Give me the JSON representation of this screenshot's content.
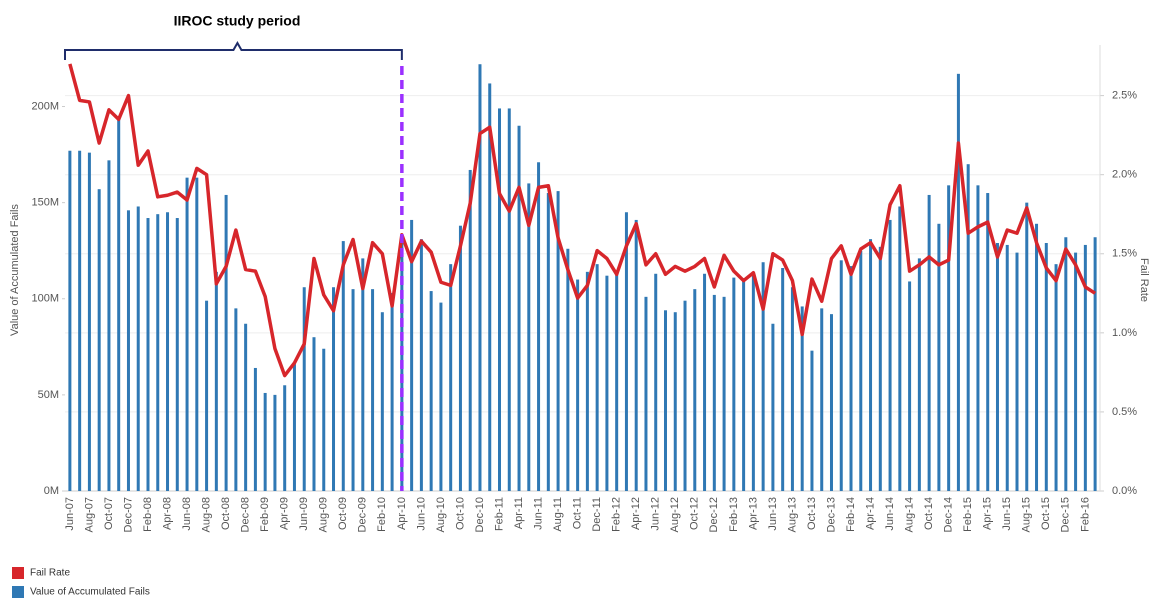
{
  "chart_data": {
    "type": "bar_line",
    "annotation": {
      "text": "IIROC study period",
      "end": "Apr-10"
    },
    "ylabel": "Value of Accumulated Fails",
    "y2label": "Fail Rate",
    "categories": [
      "Jun-07",
      null,
      "Aug-07",
      null,
      "Oct-07",
      null,
      "Dec-07",
      null,
      "Feb-08",
      null,
      "Apr-08",
      null,
      "Jun-08",
      null,
      "Aug-08",
      null,
      "Oct-08",
      null,
      "Dec-08",
      null,
      "Feb-09",
      null,
      "Apr-09",
      null,
      "Jun-09",
      null,
      "Aug-09",
      null,
      "Oct-09",
      null,
      "Dec-09",
      null,
      "Feb-10",
      null,
      "Apr-10",
      null,
      "Jun-10",
      null,
      "Aug-10",
      null,
      "Oct-10",
      null,
      "Dec-10",
      null,
      "Feb-11",
      null,
      "Apr-11",
      null,
      "Jun-11",
      null,
      "Aug-11",
      null,
      "Oct-11",
      null,
      "Dec-11",
      null,
      "Feb-12",
      null,
      "Apr-12",
      null,
      "Jun-12",
      null,
      "Aug-12",
      null,
      "Oct-12",
      null,
      "Dec-12",
      null,
      "Feb-13",
      null,
      "Apr-13",
      null,
      "Jun-13",
      null,
      "Aug-13",
      null,
      "Oct-13",
      null,
      "Dec-13",
      null,
      "Feb-14",
      null,
      "Apr-14",
      null,
      "Jun-14",
      null,
      "Aug-14",
      null,
      "Oct-14",
      null,
      "Dec-14",
      null,
      "Feb-15",
      null,
      "Apr-15",
      null,
      "Jun-15",
      null,
      "Aug-15",
      null,
      "Oct-15",
      null,
      "Dec-15",
      null,
      "Feb-16",
      null
    ],
    "series": [
      {
        "name": "Fail Rate",
        "color": "#d7262b",
        "axis": "y2",
        "kind": "line",
        "values": [
          2.7,
          2.47,
          2.46,
          2.2,
          2.41,
          2.35,
          2.5,
          2.06,
          2.15,
          1.86,
          1.87,
          1.89,
          1.84,
          2.04,
          2.0,
          1.31,
          1.42,
          1.65,
          1.4,
          1.39,
          1.23,
          0.9,
          0.73,
          0.81,
          0.93,
          1.47,
          1.24,
          1.14,
          1.43,
          1.59,
          1.28,
          1.57,
          1.5,
          1.17,
          1.62,
          1.45,
          1.58,
          1.51,
          1.32,
          1.3,
          1.55,
          1.82,
          2.26,
          2.3,
          1.88,
          1.77,
          1.92,
          1.68,
          1.92,
          1.93,
          1.6,
          1.4,
          1.22,
          1.3,
          1.52,
          1.47,
          1.37,
          1.55,
          1.69,
          1.43,
          1.5,
          1.37,
          1.42,
          1.39,
          1.42,
          1.47,
          1.29,
          1.49,
          1.39,
          1.33,
          1.38,
          1.15,
          1.5,
          1.46,
          1.33,
          0.99,
          1.34,
          1.2,
          1.47,
          1.55,
          1.37,
          1.53,
          1.57,
          1.47,
          1.81,
          1.93,
          1.39,
          1.43,
          1.48,
          1.43,
          1.46,
          2.2,
          1.63,
          1.67,
          1.7,
          1.48,
          1.65,
          1.63,
          1.79,
          1.57,
          1.41,
          1.33,
          1.53,
          1.43,
          1.29,
          1.25
        ]
      },
      {
        "name": "Value of Accumulated Fails",
        "color": "#2f78b4",
        "kind": "bar",
        "values": [
          177000000,
          177000000,
          176000000,
          157000000,
          172000000,
          194000000,
          146000000,
          148000000,
          142000000,
          144000000,
          145000000,
          142000000,
          163000000,
          163000000,
          99000000,
          114000000,
          154000000,
          95000000,
          87000000,
          64000000,
          51000000,
          50000000,
          55000000,
          66000000,
          106000000,
          80000000,
          74000000,
          106000000,
          130000000,
          105000000,
          121000000,
          105000000,
          93000000,
          103000000,
          130000000,
          141000000,
          131000000,
          104000000,
          98000000,
          118000000,
          138000000,
          167000000,
          222000000,
          212000000,
          199000000,
          199000000,
          190000000,
          160000000,
          171000000,
          155000000,
          156000000,
          126000000,
          110000000,
          114000000,
          118000000,
          112000000,
          114000000,
          145000000,
          141000000,
          101000000,
          113000000,
          94000000,
          93000000,
          99000000,
          105000000,
          113000000,
          102000000,
          101000000,
          111000000,
          109000000,
          112000000,
          119000000,
          87000000,
          116000000,
          106000000,
          96000000,
          73000000,
          95000000,
          92000000,
          120000000,
          117000000,
          125000000,
          131000000,
          127000000,
          141000000,
          148000000,
          109000000,
          121000000,
          154000000,
          139000000,
          159000000,
          217000000,
          170000000,
          159000000,
          155000000,
          129000000,
          128000000,
          124000000,
          150000000,
          139000000,
          129000000,
          118000000,
          132000000,
          124000000,
          128000000,
          132000000
        ]
      }
    ],
    "ylim": [
      0,
      232000000
    ],
    "yticks": [
      {
        "value": 0,
        "label": "0M"
      },
      {
        "value": 50000000,
        "label": "50M"
      },
      {
        "value": 100000000,
        "label": "100M"
      },
      {
        "value": 150000000,
        "label": "150M"
      },
      {
        "value": 200000000,
        "label": "200M"
      }
    ],
    "y2lim": [
      0,
      2.82
    ],
    "y2ticks": [
      {
        "value": 0,
        "label": "0.0%"
      },
      {
        "value": 0.5,
        "label": "0.5%"
      },
      {
        "value": 1,
        "label": "1.0%"
      },
      {
        "value": 1.5,
        "label": "1.5%"
      },
      {
        "value": 2,
        "label": "2.0%"
      },
      {
        "value": 2.5,
        "label": "2.5%"
      }
    ],
    "grid": true,
    "legend": "bottom-left"
  }
}
